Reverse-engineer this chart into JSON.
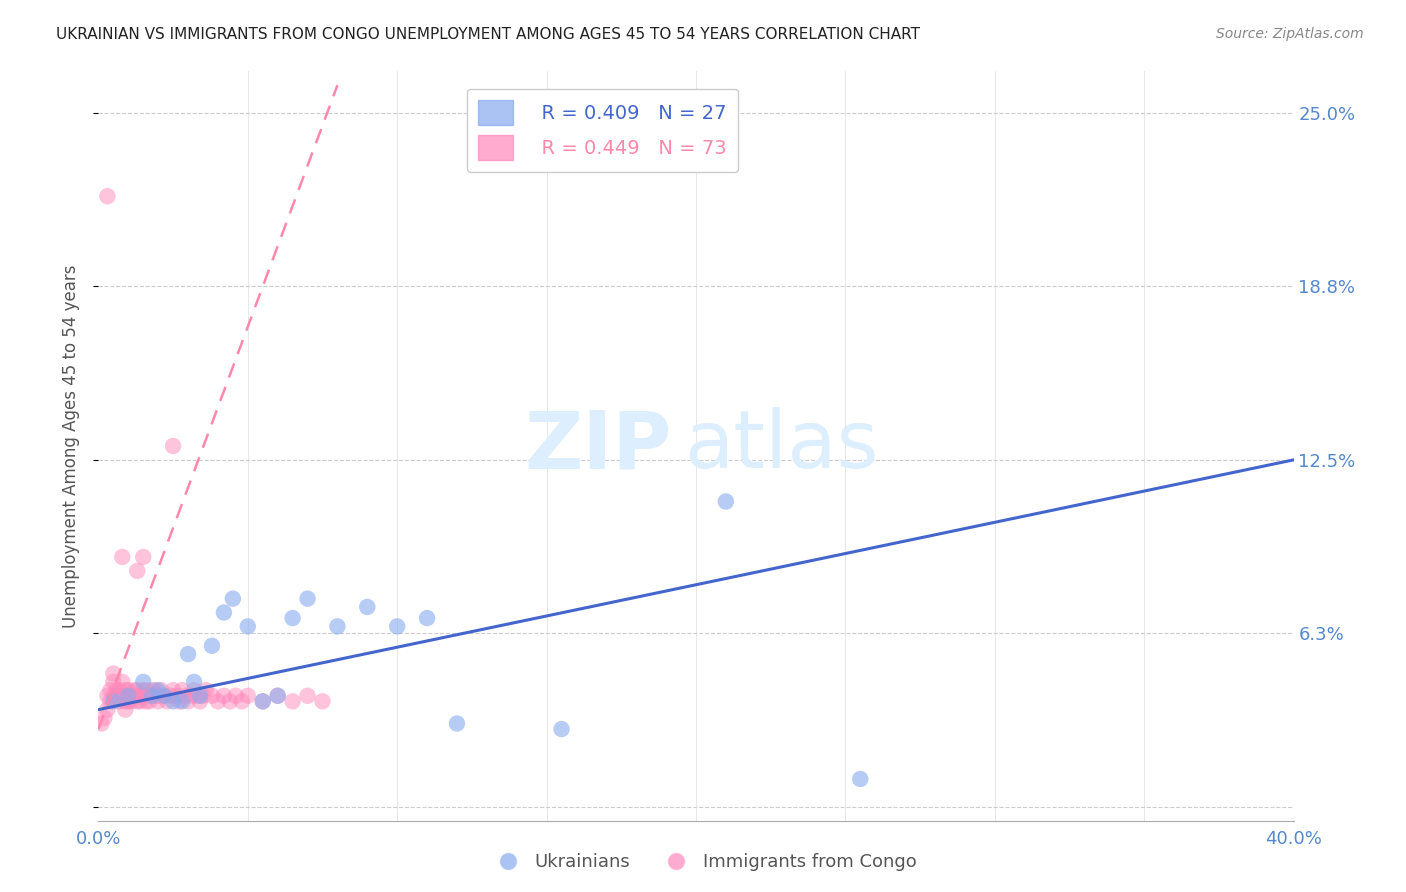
{
  "title": "UKRAINIAN VS IMMIGRANTS FROM CONGO UNEMPLOYMENT AMONG AGES 45 TO 54 YEARS CORRELATION CHART",
  "source": "Source: ZipAtlas.com",
  "ylabel": "Unemployment Among Ages 45 to 54 years",
  "xlim": [
    0.0,
    0.4
  ],
  "ylim": [
    -0.005,
    0.265
  ],
  "yticks": [
    0.0,
    0.0625,
    0.125,
    0.1875,
    0.25
  ],
  "ytick_labels": [
    "",
    "6.3%",
    "12.5%",
    "18.8%",
    "25.0%"
  ],
  "xtick_left": 0.0,
  "xtick_right": 0.4,
  "xtick_label_left": "0.0%",
  "xtick_label_right": "40.0%",
  "background_color": "#ffffff",
  "grid_color": "#cccccc",
  "title_color": "#222222",
  "axis_label_color": "#555555",
  "blue_color": "#88aaee",
  "pink_color": "#ff88bb",
  "trend_blue": "#4466cc",
  "trend_pink": "#ff88aa",
  "right_label_color": "#5588cc",
  "watermark_zip": "ZIP",
  "watermark_atlas": "atlas",
  "watermark_color": "#ddeeff",
  "legend_R_blue": "R = 0.409",
  "legend_N_blue": "N = 27",
  "legend_R_pink": "R = 0.449",
  "legend_N_pink": "N = 73",
  "legend_label_blue": "Ukrainians",
  "legend_label_pink": "Immigrants from Congo",
  "blue_scatter_x": [
    0.005,
    0.01,
    0.015,
    0.018,
    0.02,
    0.022,
    0.025,
    0.028,
    0.03,
    0.032,
    0.034,
    0.038,
    0.042,
    0.045,
    0.05,
    0.055,
    0.06,
    0.065,
    0.07,
    0.08,
    0.09,
    0.1,
    0.11,
    0.12,
    0.155,
    0.21,
    0.255
  ],
  "blue_scatter_y": [
    0.038,
    0.04,
    0.045,
    0.04,
    0.042,
    0.04,
    0.038,
    0.038,
    0.055,
    0.045,
    0.04,
    0.058,
    0.07,
    0.075,
    0.065,
    0.038,
    0.04,
    0.068,
    0.075,
    0.065,
    0.072,
    0.065,
    0.068,
    0.03,
    0.028,
    0.11,
    0.01
  ],
  "pink_scatter_x": [
    0.001,
    0.002,
    0.003,
    0.003,
    0.004,
    0.004,
    0.005,
    0.005,
    0.005,
    0.006,
    0.006,
    0.007,
    0.007,
    0.008,
    0.008,
    0.009,
    0.009,
    0.009,
    0.01,
    0.01,
    0.01,
    0.011,
    0.011,
    0.012,
    0.012,
    0.013,
    0.013,
    0.014,
    0.014,
    0.015,
    0.015,
    0.016,
    0.016,
    0.017,
    0.017,
    0.018,
    0.019,
    0.019,
    0.02,
    0.02,
    0.021,
    0.022,
    0.023,
    0.024,
    0.025,
    0.026,
    0.027,
    0.028,
    0.029,
    0.03,
    0.031,
    0.032,
    0.033,
    0.034,
    0.035,
    0.036,
    0.038,
    0.04,
    0.042,
    0.044,
    0.046,
    0.048,
    0.05,
    0.055,
    0.06,
    0.065,
    0.07,
    0.075,
    0.008,
    0.013,
    0.003,
    0.025,
    0.015
  ],
  "pink_scatter_y": [
    0.03,
    0.032,
    0.035,
    0.04,
    0.038,
    0.042,
    0.04,
    0.045,
    0.048,
    0.04,
    0.042,
    0.038,
    0.042,
    0.04,
    0.045,
    0.038,
    0.042,
    0.035,
    0.04,
    0.042,
    0.038,
    0.04,
    0.038,
    0.042,
    0.04,
    0.038,
    0.042,
    0.04,
    0.038,
    0.04,
    0.042,
    0.038,
    0.042,
    0.04,
    0.038,
    0.042,
    0.04,
    0.042,
    0.038,
    0.04,
    0.042,
    0.04,
    0.038,
    0.04,
    0.042,
    0.04,
    0.038,
    0.042,
    0.04,
    0.038,
    0.04,
    0.042,
    0.04,
    0.038,
    0.04,
    0.042,
    0.04,
    0.038,
    0.04,
    0.038,
    0.04,
    0.038,
    0.04,
    0.038,
    0.04,
    0.038,
    0.04,
    0.038,
    0.09,
    0.085,
    0.22,
    0.13,
    0.09
  ],
  "blue_trend_x": [
    0.0,
    0.4
  ],
  "blue_trend_y": [
    0.035,
    0.125
  ],
  "pink_trend_x": [
    0.0,
    0.08
  ],
  "pink_trend_y": [
    0.028,
    0.26
  ]
}
